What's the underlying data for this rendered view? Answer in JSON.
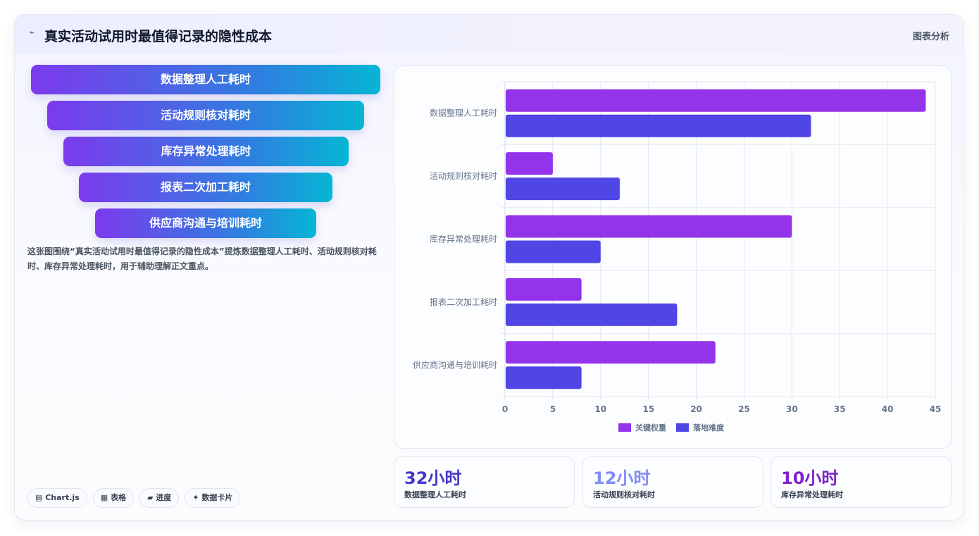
{
  "header": {
    "icon": "sparkline-icon",
    "title": "真实活动试用时最值得记录的隐性成本",
    "tag": "图表分析"
  },
  "funnel": {
    "items": [
      {
        "label": "数据整理人工耗时"
      },
      {
        "label": "活动规则核对耗时"
      },
      {
        "label": "库存异常处理耗时"
      },
      {
        "label": "报表二次加工耗时"
      },
      {
        "label": "供应商沟通与培训耗时"
      }
    ]
  },
  "description": "这张图围绕“真实活动试用时最值得记录的隐性成本”提炼数据整理人工耗时、活动规则核对耗时、库存异常处理耗时，用于辅助理解正文重点。",
  "tags": [
    {
      "icon": "chart-icon",
      "label": "Chart.js"
    },
    {
      "icon": "table-icon",
      "label": "表格"
    },
    {
      "icon": "progress-icon",
      "label": "进度"
    },
    {
      "icon": "sparkle-icon",
      "label": "数据卡片"
    }
  ],
  "stats": [
    {
      "value": "32小时",
      "label": "数据整理人工耗时",
      "color": "#4338ca"
    },
    {
      "value": "12小时",
      "label": "活动规则核对耗时",
      "color": "#818cf8"
    },
    {
      "value": "10小时",
      "label": "库存异常处理耗时",
      "color": "#7e22ce"
    }
  ],
  "chart_data": {
    "type": "bar",
    "orientation": "horizontal",
    "categories": [
      "数据整理人工耗时",
      "活动规则核对耗时",
      "库存异常处理耗时",
      "报表二次加工耗时",
      "供应商沟通与培训耗时"
    ],
    "series": [
      {
        "name": "关键权重",
        "values": [
          44,
          5,
          30,
          8,
          22
        ],
        "color": "#9333ea"
      },
      {
        "name": "落地难度",
        "values": [
          32,
          12,
          10,
          18,
          8
        ],
        "color": "#4f46e5"
      }
    ],
    "xlim": [
      0,
      45
    ],
    "xticks": [
      "0",
      "5",
      "10",
      "15",
      "20",
      "25",
      "30",
      "35",
      "40",
      "45"
    ],
    "grid": true,
    "legend": "bottom"
  }
}
